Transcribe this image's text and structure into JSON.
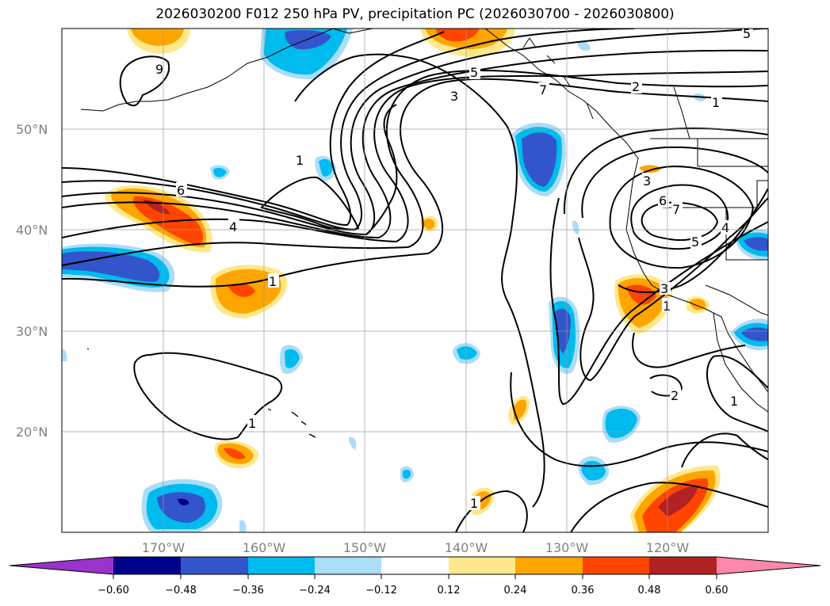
{
  "title": "2026030200 F012 250 hPa PV, precipitation PC (2026030700 - 2026030800)",
  "lat_labels": [
    "50°N",
    "40°N",
    "30°N",
    "20°N"
  ],
  "lon_labels": [
    "170°W",
    "160°W",
    "150°W",
    "140°W",
    "130°W",
    "120°W"
  ],
  "colorbar": {
    "ticks": [
      "−0.60",
      "−0.48",
      "−0.36",
      "−0.24",
      "−0.12",
      "0.12",
      "0.24",
      "0.36",
      "0.48",
      "0.60"
    ],
    "colors": [
      "#9933cc",
      "#000088",
      "#3355cc",
      "#00bbee",
      "#aaddf7",
      "#ffffff",
      "#ffe88a",
      "#ffa500",
      "#ff4400",
      "#b22222",
      "#ff88aa"
    ]
  },
  "contour_labels": {
    "c9": "9",
    "c5a": "5",
    "c3a": "3",
    "c2a": "2",
    "c1a": "1",
    "c5b": "5",
    "c7": "7",
    "c1b": "1",
    "c6a": "6",
    "c4a": "4",
    "c3b": "3",
    "c6b": "6",
    "c7b": "7",
    "c4b": "4",
    "c5c": "5",
    "c3c": "3",
    "c1c": "1",
    "c1d": "1",
    "c2b": "2",
    "c1e": "1",
    "c1f": "1",
    "c1g": "1"
  }
}
